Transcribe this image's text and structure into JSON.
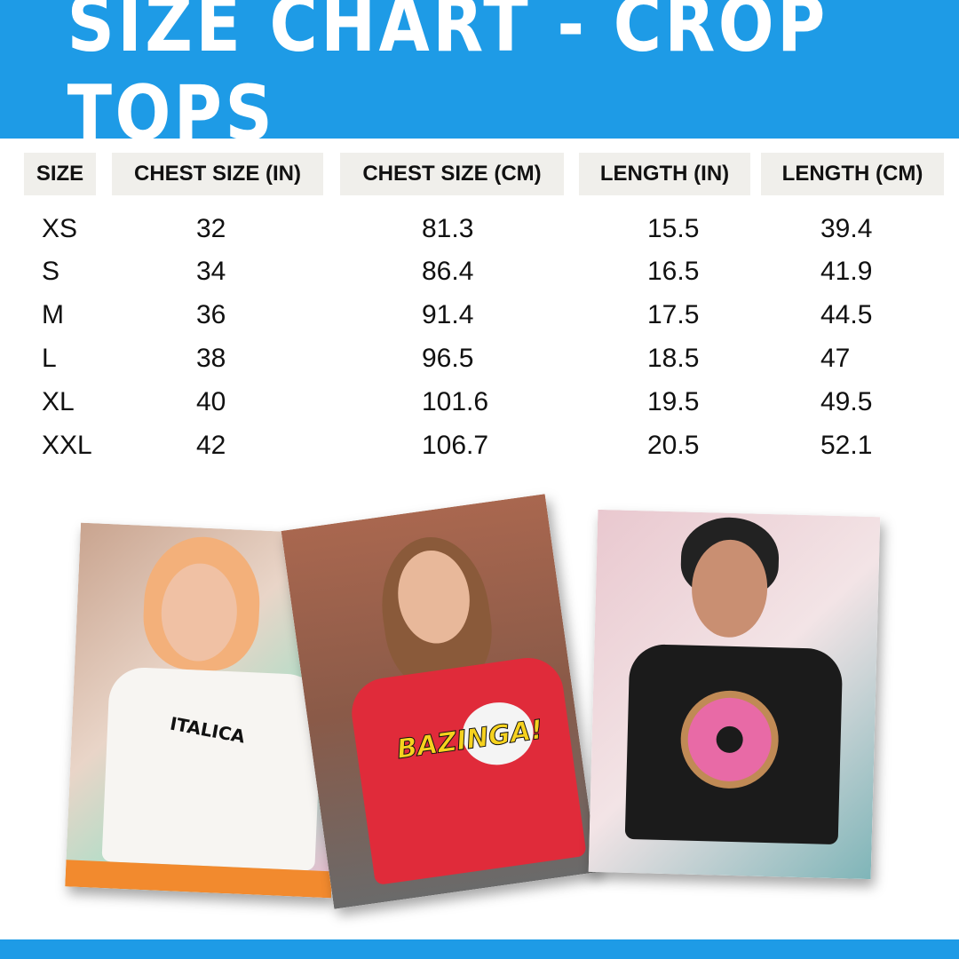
{
  "title": "SIZE CHART - CROP TOPS",
  "colors": {
    "brand_blue": "#1e9be6",
    "header_bg": "#f0efeb"
  },
  "table": {
    "headers": [
      "SIZE",
      "CHEST SIZE (IN)",
      "CHEST SIZE (CM)",
      "LENGTH (IN)",
      "LENGTH (CM)"
    ],
    "rows": [
      [
        "XS",
        "32",
        "81.3",
        "15.5",
        "39.4"
      ],
      [
        "S",
        "34",
        "86.4",
        "16.5",
        "41.9"
      ],
      [
        "M",
        "36",
        "91.4",
        "17.5",
        "44.5"
      ],
      [
        "L",
        "38",
        "96.5",
        "18.5",
        "47"
      ],
      [
        "XL",
        "40",
        "101.6",
        "19.5",
        "49.5"
      ],
      [
        "XXL",
        "42",
        "106.7",
        "20.5",
        "52.1"
      ]
    ]
  },
  "photos": [
    {
      "shirt_print": "ITALICA",
      "shirt_color": "#f7f5f2"
    },
    {
      "shirt_print": "BAZINGA!",
      "shirt_color": "#e02b3a"
    },
    {
      "shirt_print": "donut",
      "shirt_color": "#1b1b1b"
    }
  ]
}
